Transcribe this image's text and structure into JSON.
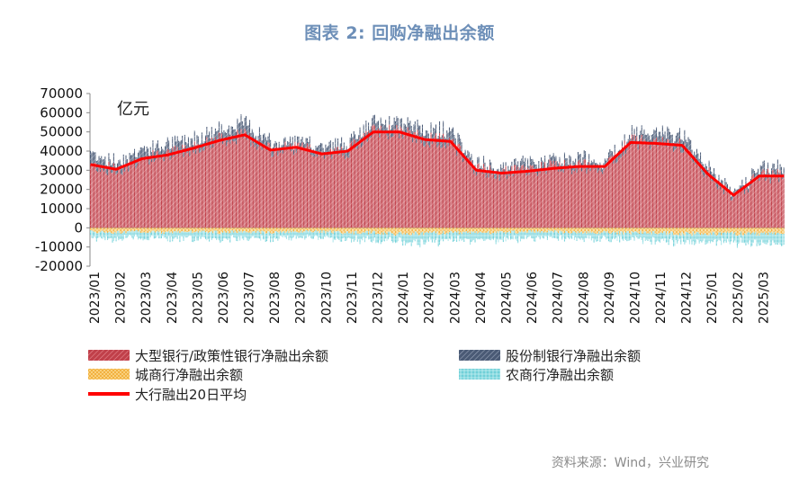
{
  "title": "图表 2:   回购净融出余额",
  "source": "资料来源：Wind，兴业研究",
  "colors": {
    "big": "#c0404a",
    "share": "#4a5a75",
    "city": "#f0a830",
    "rural": "#70d0d8",
    "avg": "#ff0000",
    "title": "#6d8fb8"
  },
  "chart_data": {
    "type": "bar",
    "unit_label": "亿元",
    "ylim": [
      -20000,
      70000
    ],
    "yticks": [
      "70000",
      "60000",
      "50000",
      "40000",
      "30000",
      "20000",
      "10000",
      "0",
      "-10000",
      "-20000"
    ],
    "ytick_values": [
      70000,
      60000,
      50000,
      40000,
      30000,
      20000,
      10000,
      0,
      -10000,
      -20000
    ],
    "x_categories": [
      "2023/01",
      "2023/02",
      "2023/03",
      "2023/04",
      "2023/05",
      "2023/06",
      "2023/07",
      "2023/08",
      "2023/09",
      "2023/10",
      "2023/11",
      "2023/12",
      "2024/01",
      "2024/02",
      "2024/03",
      "2024/04",
      "2024/05",
      "2024/06",
      "2024/07",
      "2024/08",
      "2024/09",
      "2024/10",
      "2024/11",
      "2024/12",
      "2025/01",
      "2025/02",
      "2025/03"
    ],
    "legend": [
      {
        "key": "big",
        "label": "大型银行/政策性银行净融出余额"
      },
      {
        "key": "share",
        "label": "股份制银行净融出余额"
      },
      {
        "key": "city",
        "label": "城商行净融出余额"
      },
      {
        "key": "rural",
        "label": "农商行净融出余额"
      },
      {
        "key": "avg",
        "label": "大行融出20日平均"
      }
    ],
    "series_monthly_approx": {
      "big": [
        33000,
        30000,
        36000,
        38000,
        42000,
        46000,
        48000,
        40000,
        42000,
        38000,
        40000,
        50000,
        50000,
        46000,
        45000,
        30000,
        28000,
        30000,
        32000,
        32000,
        32000,
        45000,
        44000,
        43000,
        28000,
        16000,
        27000
      ],
      "share": [
        7000,
        4000,
        5000,
        5000,
        5000,
        5000,
        7000,
        4000,
        3000,
        4000,
        4000,
        5000,
        5000,
        5000,
        6000,
        3000,
        3000,
        4000,
        3000,
        4000,
        3000,
        4000,
        5000,
        6000,
        4000,
        2000,
        4000
      ],
      "city": [
        -2000,
        -2500,
        -2000,
        -2500,
        -2000,
        -2500,
        -2000,
        -2500,
        -2000,
        -2000,
        -2500,
        -2500,
        -3000,
        -3000,
        -2500,
        -2500,
        -2500,
        -2000,
        -2000,
        -2500,
        -2500,
        -2500,
        -2500,
        -3000,
        -3000,
        -3000,
        -3000
      ],
      "rural": [
        -3000,
        -3500,
        -3000,
        -3500,
        -3500,
        -4000,
        -3500,
        -3500,
        -3000,
        -3500,
        -3500,
        -4000,
        -4000,
        -5000,
        -4000,
        -4000,
        -4000,
        -3500,
        -3000,
        -3500,
        -3500,
        -4000,
        -4000,
        -4500,
        -4000,
        -4500,
        -5000
      ],
      "avg": [
        33000,
        30500,
        36000,
        38000,
        41500,
        45500,
        48500,
        40500,
        42000,
        38500,
        40000,
        50000,
        50000,
        46000,
        45000,
        30000,
        28500,
        29500,
        31000,
        32000,
        32000,
        44500,
        44000,
        43000,
        28000,
        17000,
        27000
      ]
    }
  }
}
